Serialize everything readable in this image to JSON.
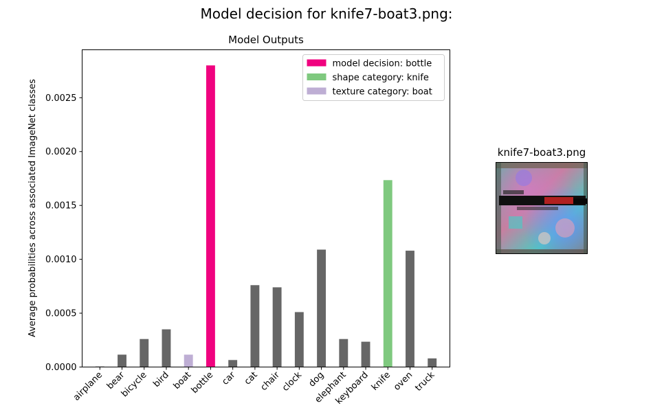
{
  "figure": {
    "title": "Model decision for knife7-boat3.png:",
    "image_title": "knife7-boat3.png"
  },
  "chart_data": {
    "type": "bar",
    "title": "Model Outputs",
    "xlabel": "",
    "ylabel": "Average probabilities across associated ImageNet classes",
    "categories": [
      "airplane",
      "bear",
      "bicycle",
      "bird",
      "boat",
      "bottle",
      "car",
      "cat",
      "chair",
      "clock",
      "dog",
      "elephant",
      "keyboard",
      "knife",
      "oven",
      "truck"
    ],
    "values": [
      5e-06,
      0.000115,
      0.00026,
      0.00035,
      0.000115,
      0.0028,
      6.5e-05,
      0.00076,
      0.00074,
      0.00051,
      0.00109,
      0.00026,
      0.000235,
      0.001735,
      0.00108,
      8e-05
    ],
    "ylim": [
      0,
      0.002945
    ],
    "yticks": [
      0,
      0.0005,
      0.001,
      0.0015,
      0.002,
      0.0025
    ],
    "ytick_labels": [
      "0.0000",
      "0.0005",
      "0.0010",
      "0.0015",
      "0.0020",
      "0.0025"
    ],
    "grid": false,
    "legend_position": "top-right",
    "colors": {
      "default": "#666666",
      "decision": "#f0027f",
      "shape": "#7fc97f",
      "texture": "#beaed4"
    },
    "highlight": {
      "bottle": "decision",
      "knife": "shape",
      "boat": "texture"
    },
    "legend": [
      {
        "label": "model decision: bottle",
        "color": "#f0027f"
      },
      {
        "label": "shape category: knife",
        "color": "#7fc97f"
      },
      {
        "label": "texture category: boat",
        "color": "#beaed4"
      }
    ]
  }
}
